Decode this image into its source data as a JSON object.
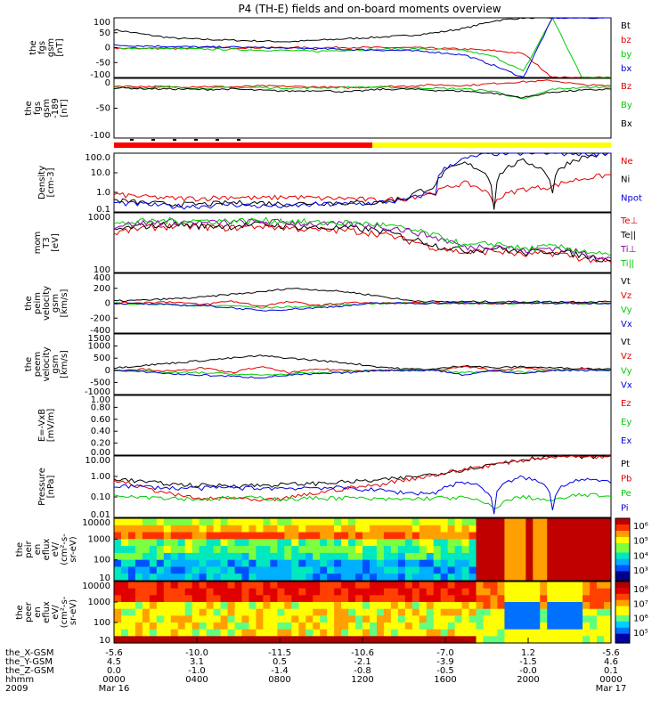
{
  "title": "P4 (TH-E) fields and on-board moments overview",
  "colors": {
    "black": "#000000",
    "red": "#e00000",
    "green": "#00cc00",
    "blue": "#0000dd",
    "yellow": "#ffff00",
    "purple": "#8800aa"
  },
  "chart_data": [
    {
      "type": "line",
      "id": "fgs",
      "ylabel": [
        "the",
        "fgs",
        "gsm",
        "[nT]"
      ],
      "ylim": [
        -100,
        100
      ],
      "yticks": [
        "100",
        "50",
        "0",
        "-50",
        "-100"
      ],
      "series": [
        {
          "name": "Bt",
          "color": "#000000",
          "values": [
            60,
            45,
            32,
            28,
            25,
            22,
            20,
            25,
            30,
            35,
            40,
            50,
            65,
            90,
            100,
            100,
            100,
            100
          ]
        },
        {
          "name": "bz",
          "color": "#e00000",
          "values": [
            -2,
            -2,
            -1,
            -1,
            0,
            0,
            0,
            0,
            1,
            0,
            0,
            -2,
            -5,
            -10,
            -20,
            -100,
            -100,
            -100
          ]
        },
        {
          "name": "by",
          "color": "#00cc00",
          "values": [
            -1,
            -3,
            -4,
            -5,
            -6,
            -8,
            -10,
            -12,
            -8,
            -6,
            -4,
            -6,
            -10,
            -30,
            -80,
            100,
            -100,
            -100
          ]
        },
        {
          "name": "bx",
          "color": "#0000dd",
          "values": [
            8,
            6,
            4,
            2,
            2,
            0,
            -2,
            -4,
            -6,
            -8,
            -10,
            -15,
            -25,
            -60,
            -100,
            100,
            100,
            100
          ]
        }
      ]
    },
    {
      "type": "line",
      "id": "fgs189",
      "ylabel": [
        "the",
        "fgs",
        "gsm",
        "-189",
        "[nT]"
      ],
      "ylim": [
        -120,
        20
      ],
      "yticks": [
        "0",
        "-50",
        "-100"
      ],
      "series": [
        {
          "name": "Bz",
          "color": "#e00000",
          "values": [
            2,
            1,
            0,
            1,
            0,
            2,
            1,
            0,
            -2,
            0,
            2,
            5,
            3,
            8,
            12,
            15,
            5,
            2
          ]
        },
        {
          "name": "By",
          "color": "#00cc00",
          "values": [
            0,
            -2,
            -1,
            -3,
            -2,
            -1,
            -3,
            -2,
            -1,
            0,
            -2,
            -3,
            -5,
            -10,
            -30,
            -5,
            -2,
            0
          ]
        },
        {
          "name": "Bx",
          "color": "#000000",
          "values": [
            -2,
            -4,
            -5,
            -6,
            -5,
            -8,
            -10,
            -8,
            -12,
            -6,
            -5,
            -8,
            -10,
            -15,
            -25,
            -12,
            -8,
            -5
          ]
        }
      ]
    },
    {
      "type": "line",
      "id": "density",
      "ylabel": [
        "Density",
        "[cm-3]"
      ],
      "ylog": true,
      "ylim": [
        0.1,
        100
      ],
      "yticks": [
        "100.0",
        "10.0",
        "1.0",
        "0.1"
      ],
      "series": [
        {
          "name": "Ne",
          "color": "#e00000",
          "values": [
            0.8,
            0.6,
            0.5,
            0.5,
            0.6,
            0.5,
            0.6,
            0.5,
            0.5,
            0.4,
            0.5,
            1,
            3,
            0.3,
            1.5,
            2,
            5,
            8
          ]
        },
        {
          "name": "Ni",
          "color": "#000000",
          "values": [
            0.4,
            0.3,
            0.25,
            0.25,
            0.3,
            0.3,
            0.25,
            0.3,
            0.3,
            0.3,
            0.5,
            2,
            30,
            0.15,
            40,
            1,
            60,
            100
          ]
        },
        {
          "name": "Npot",
          "color": "#0000dd",
          "values": [
            0.3,
            0.25,
            0.2,
            0.2,
            0.25,
            0.2,
            0.2,
            0.25,
            0.25,
            0.3,
            0.4,
            1,
            50,
            100,
            100,
            100,
            100,
            100
          ]
        }
      ]
    },
    {
      "type": "line",
      "id": "temps",
      "ylabel": [
        "mom",
        "T3",
        "[eV]"
      ],
      "ylog": true,
      "ylim": [
        40,
        10000
      ],
      "yticks": [
        "1000",
        "100"
      ],
      "series": [
        {
          "name": "Te⊥",
          "color": "#e00000",
          "values": [
            1500,
            2500,
            3000,
            2800,
            2500,
            3000,
            2500,
            2000,
            2000,
            1500,
            800,
            400,
            250,
            300,
            200,
            250,
            150,
            100
          ]
        },
        {
          "name": "Te||",
          "color": "#000000",
          "values": [
            2000,
            3000,
            3500,
            3000,
            3000,
            3500,
            3000,
            2500,
            2500,
            2000,
            1000,
            500,
            300,
            400,
            250,
            300,
            200,
            120
          ]
        },
        {
          "name": "Ti⊥",
          "color": "#8800aa",
          "values": [
            3000,
            4000,
            4500,
            4000,
            4200,
            4500,
            4200,
            3500,
            3500,
            3000,
            2000,
            1000,
            400,
            500,
            300,
            400,
            250,
            150
          ]
        },
        {
          "name": "Ti||",
          "color": "#00cc00",
          "values": [
            3500,
            4500,
            5000,
            4800,
            4800,
            5000,
            4800,
            4000,
            4000,
            3500,
            2200,
            1200,
            450,
            600,
            350,
            450,
            300,
            180
          ]
        }
      ]
    },
    {
      "type": "line",
      "id": "peim",
      "ylabel": [
        "the",
        "peim",
        "velocity",
        "gsm",
        "[km/s]"
      ],
      "ylim": [
        -400,
        400
      ],
      "yticks": [
        "400",
        "200",
        "0",
        "-200",
        "-400"
      ],
      "series": [
        {
          "name": "Vt",
          "color": "#000000",
          "values": [
            30,
            40,
            60,
            80,
            120,
            150,
            200,
            180,
            150,
            100,
            40,
            20,
            20,
            20,
            20,
            20,
            20,
            20
          ]
        },
        {
          "name": "Vz",
          "color": "#e00000",
          "values": [
            0,
            10,
            20,
            -20,
            30,
            -40,
            20,
            -30,
            10,
            0,
            0,
            0,
            0,
            0,
            0,
            0,
            0,
            0
          ]
        },
        {
          "name": "Vy",
          "color": "#00cc00",
          "values": [
            0,
            -10,
            -20,
            -40,
            -30,
            -60,
            -50,
            -40,
            -20,
            0,
            0,
            0,
            0,
            0,
            0,
            0,
            0,
            0
          ]
        },
        {
          "name": "Vx",
          "color": "#0000dd",
          "values": [
            0,
            -10,
            -20,
            -30,
            -60,
            -100,
            -80,
            -60,
            -30,
            0,
            0,
            0,
            0,
            0,
            0,
            0,
            0,
            0
          ]
        }
      ]
    },
    {
      "type": "line",
      "id": "peem",
      "ylabel": [
        "the",
        "peem",
        "velocity",
        "gsm",
        "[km/s]"
      ],
      "ylim": [
        -1000,
        1500
      ],
      "yticks": [
        "1500",
        "1000",
        "500",
        "0",
        "-500",
        "-1000"
      ],
      "series": [
        {
          "name": "Vt",
          "color": "#000000",
          "values": [
            100,
            200,
            300,
            400,
            500,
            600,
            500,
            400,
            300,
            150,
            50,
            50,
            200,
            100,
            150,
            100,
            80,
            50
          ]
        },
        {
          "name": "Vz",
          "color": "#e00000",
          "values": [
            0,
            50,
            -50,
            100,
            -100,
            150,
            -100,
            50,
            0,
            0,
            0,
            0,
            150,
            0,
            100,
            0,
            50,
            0
          ]
        },
        {
          "name": "Vy",
          "color": "#00cc00",
          "values": [
            0,
            -50,
            -100,
            -100,
            -150,
            -200,
            -150,
            -100,
            -50,
            0,
            0,
            0,
            -100,
            0,
            -80,
            0,
            0,
            0
          ]
        },
        {
          "name": "Vx",
          "color": "#0000dd",
          "values": [
            0,
            -50,
            -150,
            -200,
            -250,
            -300,
            -200,
            -150,
            -100,
            0,
            0,
            0,
            -200,
            0,
            -150,
            0,
            0,
            0
          ]
        }
      ]
    },
    {
      "type": "line",
      "id": "efield",
      "ylabel": [
        "E=-VxB",
        "[mV/m]"
      ],
      "ylim": [
        -1,
        1
      ],
      "yticks": [
        "1.00",
        "0.80",
        "0.60",
        "0.40",
        "0.20",
        "0.00"
      ],
      "series": [
        {
          "name": "Ez",
          "color": "#e00000",
          "values": []
        },
        {
          "name": "Ey",
          "color": "#00cc00",
          "values": []
        },
        {
          "name": "Ex",
          "color": "#0000dd",
          "values": []
        }
      ]
    },
    {
      "type": "line",
      "id": "pressure",
      "ylabel": [
        "Pressure",
        "[nPa]"
      ],
      "ylog": true,
      "ylim": [
        0.003,
        20
      ],
      "yticks": [
        "10.00",
        "1.00",
        "0.10",
        "0.01"
      ],
      "series": [
        {
          "name": "Pt",
          "color": "#000000",
          "values": [
            0.8,
            0.5,
            0.35,
            0.3,
            0.3,
            0.3,
            0.35,
            0.4,
            0.5,
            0.6,
            0.9,
            1.5,
            3,
            6,
            12,
            20,
            20,
            20
          ]
        },
        {
          "name": "Pb",
          "color": "#e00000",
          "values": [
            0.6,
            0.2,
            0.08,
            0.04,
            0.05,
            0.03,
            0.05,
            0.1,
            0.2,
            0.3,
            0.7,
            1.3,
            2.8,
            5.8,
            11,
            19,
            20,
            20
          ]
        },
        {
          "name": "Pe",
          "color": "#00cc00",
          "values": [
            0.08,
            0.06,
            0.05,
            0.04,
            0.05,
            0.05,
            0.04,
            0.05,
            0.05,
            0.04,
            0.04,
            0.05,
            0.05,
            0.01,
            0.06,
            0.03,
            0.08,
            0.06
          ]
        },
        {
          "name": "Pi",
          "color": "#0000dd",
          "values": [
            0.3,
            0.25,
            0.2,
            0.2,
            0.22,
            0.2,
            0.2,
            0.22,
            0.2,
            0.15,
            0.1,
            0.1,
            0.5,
            0.005,
            1,
            0.01,
            0.8,
            0.4
          ]
        }
      ]
    },
    {
      "type": "heatmap",
      "id": "peir",
      "ylabel": [
        "the",
        "peir",
        "en",
        "eflux",
        "eV/",
        "(cm²-s-",
        "sr-eV)"
      ],
      "yticks": [
        "10000",
        "1000",
        "100",
        "10"
      ],
      "colorbar": [
        "10⁶",
        "10⁵",
        "10⁴",
        "10³"
      ]
    },
    {
      "type": "heatmap",
      "id": "peer",
      "ylabel": [
        "the",
        "peer",
        "en",
        "eflux",
        "eV/",
        "(cm²-s-",
        "sr-eV)"
      ],
      "yticks": [
        "10000",
        "1000",
        "100",
        "10"
      ],
      "colorbar": [
        "10⁸",
        "10⁷",
        "10⁶",
        "10⁵"
      ]
    }
  ],
  "xaxis": {
    "rows": [
      {
        "label": "the_X-GSM",
        "values": [
          "-5.6",
          "-10.0",
          "-11.5",
          "-10.6",
          "-7.0",
          "1.2",
          "-5.6"
        ]
      },
      {
        "label": "the_Y-GSM",
        "values": [
          "4.5",
          "3.1",
          "0.5",
          "-2.1",
          "-3.9",
          "-1.5",
          "4.6"
        ]
      },
      {
        "label": "the_Z-GSM",
        "values": [
          "0.0",
          "-1.0",
          "-1.4",
          "-0.8",
          "-0.5",
          "-0.0",
          "0.1"
        ]
      },
      {
        "label": "hhmm",
        "values": [
          "0000",
          "0400",
          "0800",
          "1200",
          "1600",
          "2000",
          "0000"
        ]
      },
      {
        "label": "2009",
        "values": [
          "Mar 16",
          "",
          "",
          "",
          "",
          "",
          "Mar 17"
        ]
      }
    ]
  }
}
